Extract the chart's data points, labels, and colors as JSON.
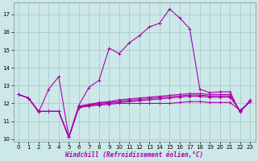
{
  "xlabel": "Windchill (Refroidissement éolien,°C)",
  "background_color": "#cce8e8",
  "grid_color": "#aacccc",
  "line_color": "#aa00aa",
  "xlim_min": -0.5,
  "xlim_max": 23.5,
  "ylim_min": 9.85,
  "ylim_max": 17.65,
  "yticks": [
    10,
    11,
    12,
    13,
    14,
    15,
    16,
    17
  ],
  "xticks": [
    0,
    1,
    2,
    3,
    4,
    5,
    6,
    7,
    8,
    9,
    10,
    11,
    12,
    13,
    14,
    15,
    16,
    17,
    18,
    19,
    20,
    21,
    22,
    23
  ],
  "series": [
    [
      12.5,
      12.3,
      11.5,
      12.8,
      13.5,
      10.1,
      11.9,
      12.9,
      13.3,
      15.1,
      14.8,
      15.4,
      15.8,
      16.3,
      16.5,
      17.3,
      16.8,
      16.2,
      12.8,
      12.6,
      12.65,
      12.65,
      11.5,
      12.2
    ],
    [
      12.5,
      12.3,
      11.55,
      11.55,
      11.55,
      10.1,
      11.75,
      11.85,
      11.9,
      11.95,
      12.0,
      12.0,
      12.0,
      12.0,
      12.0,
      12.0,
      12.05,
      12.1,
      12.1,
      12.05,
      12.05,
      12.05,
      11.6,
      12.1
    ],
    [
      12.5,
      12.3,
      11.55,
      11.55,
      11.55,
      10.1,
      11.8,
      11.9,
      11.95,
      12.0,
      12.05,
      12.1,
      12.15,
      12.2,
      12.25,
      12.3,
      12.35,
      12.4,
      12.4,
      12.35,
      12.35,
      12.35,
      11.6,
      12.1
    ],
    [
      12.5,
      12.3,
      11.55,
      11.55,
      11.55,
      10.1,
      11.85,
      11.95,
      12.05,
      12.1,
      12.2,
      12.25,
      12.3,
      12.35,
      12.4,
      12.45,
      12.5,
      12.55,
      12.55,
      12.5,
      12.5,
      12.5,
      11.55,
      12.1
    ],
    [
      12.5,
      12.3,
      11.55,
      11.55,
      11.55,
      10.1,
      11.82,
      11.92,
      12.0,
      12.05,
      12.12,
      12.17,
      12.22,
      12.27,
      12.32,
      12.37,
      12.42,
      12.47,
      12.47,
      12.42,
      12.42,
      12.42,
      11.58,
      12.1
    ]
  ],
  "marker": "+",
  "markersize": 2.5,
  "linewidth": 0.8,
  "tick_labelsize": 5.0,
  "xlabel_fontsize": 5.5
}
